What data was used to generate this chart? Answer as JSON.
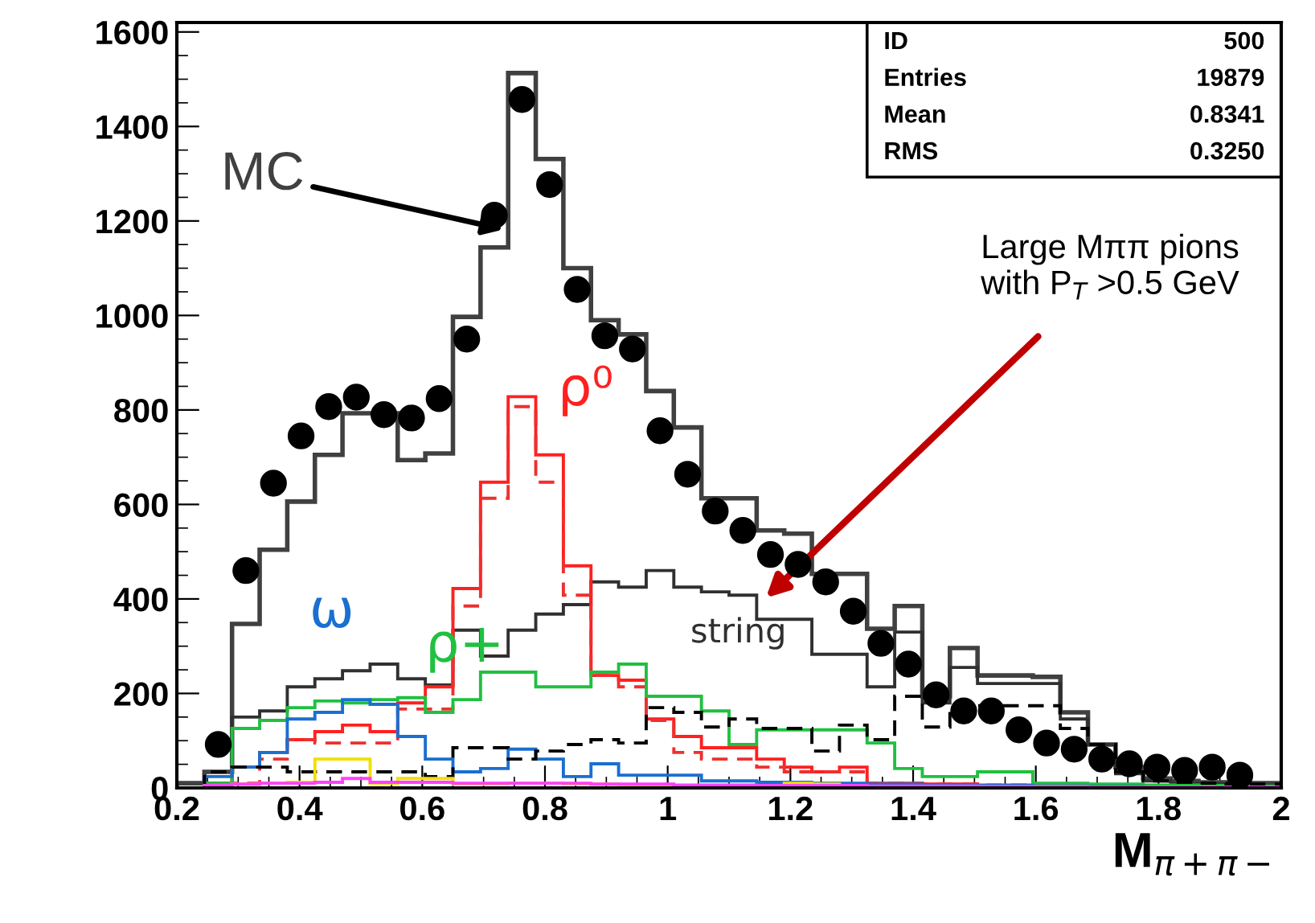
{
  "chart_data": {
    "type": "histogram",
    "xlabel": "M$_{π+π−}$",
    "bins": [
      0.2,
      0.245,
      0.29,
      0.335,
      0.38,
      0.425,
      0.47,
      0.515,
      0.56,
      0.605,
      0.65,
      0.695,
      0.74,
      0.785,
      0.83,
      0.875,
      0.92,
      0.965,
      1.01,
      1.055,
      1.1,
      1.145,
      1.19,
      1.235,
      1.28,
      1.325,
      1.37,
      1.415,
      1.46,
      1.505,
      1.55,
      1.595,
      1.64,
      1.685,
      1.73,
      1.775,
      1.82,
      1.865,
      1.91,
      1.955,
      2.0
    ],
    "series": [
      {
        "name": "MC",
        "color": "#404040",
        "values": [
          10,
          34,
          347,
          504,
          606,
          705,
          793,
          793,
          694,
          708,
          997,
          1144,
          1513,
          1331,
          1100,
          990,
          960,
          840,
          763,
          613,
          613,
          545,
          538,
          453,
          453,
          337,
          385,
          194,
          296,
          238,
          238,
          235,
          160,
          92,
          44,
          20,
          15,
          12,
          10,
          10
        ]
      },
      {
        "name": "string",
        "color": "#303030",
        "values": [
          0,
          10,
          150,
          163,
          214,
          231,
          248,
          262,
          231,
          218,
          334,
          279,
          334,
          368,
          388,
          436,
          425,
          460,
          425,
          415,
          408,
          357,
          357,
          283,
          283,
          214,
          330,
          180,
          255,
          221,
          221,
          221,
          146,
          92,
          30,
          15,
          10,
          8,
          6,
          5
        ]
      },
      {
        "name": "ρ⁰",
        "color": "#ff2020",
        "values": [
          0,
          10,
          44,
          75,
          102,
          119,
          133,
          119,
          180,
          214,
          422,
          647,
          828,
          705,
          470,
          238,
          228,
          146,
          109,
          85,
          85,
          61,
          44,
          34,
          44,
          10,
          10,
          8,
          8,
          6,
          6,
          5,
          5,
          4,
          4,
          3,
          3,
          2,
          2,
          2
        ]
      },
      {
        "color": "#ee3030",
        "line_style": "dashed",
        "values": [
          0,
          5,
          10,
          61,
          102,
          95,
          95,
          95,
          167,
          167,
          385,
          613,
          807,
          647,
          408,
          238,
          214,
          143,
          75,
          61,
          61,
          44,
          34,
          34,
          34,
          10,
          10,
          8,
          8,
          6,
          6,
          5,
          5,
          4,
          4,
          3,
          3,
          2,
          2,
          2
        ]
      },
      {
        "name": "ρ+",
        "color": "#20c040",
        "values": [
          0,
          10,
          126,
          143,
          170,
          184,
          180,
          187,
          191,
          160,
          187,
          245,
          245,
          214,
          214,
          245,
          262,
          194,
          194,
          163,
          92,
          123,
          123,
          123,
          123,
          95,
          41,
          24,
          24,
          34,
          34,
          10,
          10,
          8,
          8,
          6,
          6,
          5,
          5,
          4
        ]
      },
      {
        "name": "ω",
        "color": "#1a6fd0",
        "values": [
          0,
          24,
          44,
          75,
          146,
          160,
          187,
          177,
          109,
          61,
          34,
          41,
          82,
          61,
          24,
          51,
          27,
          27,
          27,
          15,
          15,
          12,
          12,
          10,
          10,
          8,
          8,
          6,
          6,
          5,
          5,
          4,
          4,
          3,
          3,
          2,
          2,
          2,
          1,
          1
        ]
      },
      {
        "color": "#000000",
        "line_style": "dashed",
        "values": [
          0,
          34,
          44,
          44,
          34,
          34,
          34,
          34,
          34,
          24,
          85,
          85,
          61,
          78,
          92,
          102,
          95,
          170,
          160,
          129,
          146,
          126,
          126,
          78,
          133,
          102,
          194,
          129,
          174,
          174,
          174,
          174,
          126,
          92,
          34,
          15,
          12,
          10,
          8,
          8
        ]
      },
      {
        "color": "#f0e000",
        "values": [
          0,
          5,
          8,
          10,
          12,
          61,
          61,
          10,
          20,
          20,
          8,
          8,
          10,
          10,
          8,
          8,
          6,
          6,
          5,
          5,
          4,
          4,
          10,
          8,
          4,
          3,
          3,
          3,
          2,
          2,
          2,
          2,
          2,
          1,
          1,
          1,
          1,
          1,
          1,
          1
        ]
      },
      {
        "color": "#ff40ff",
        "values": [
          0,
          5,
          8,
          10,
          10,
          12,
          20,
          12,
          12,
          12,
          10,
          10,
          10,
          10,
          10,
          8,
          8,
          8,
          6,
          6,
          6,
          5,
          5,
          5,
          5,
          4,
          4,
          4,
          4,
          3,
          3,
          3,
          3,
          2,
          2,
          2,
          2,
          2,
          2,
          2
        ]
      },
      {
        "type": "scatter",
        "color": "#000000",
        "marker": "circle",
        "x": [
          0.2675,
          0.3125,
          0.3575,
          0.4025,
          0.4475,
          0.4925,
          0.5375,
          0.5825,
          0.6275,
          0.6725,
          0.7175,
          0.7625,
          0.8075,
          0.8525,
          0.8975,
          0.9425,
          0.9875,
          1.0325,
          1.0775,
          1.1225,
          1.1675,
          1.2125,
          1.2575,
          1.3025,
          1.3475,
          1.3925,
          1.4375,
          1.4825,
          1.5275,
          1.5725,
          1.6175,
          1.6625,
          1.7075,
          1.7525,
          1.7975,
          1.8425,
          1.8875,
          1.9325
        ],
        "values": [
          92,
          460,
          645,
          745,
          807,
          827,
          790,
          783,
          824,
          950,
          1212,
          1457,
          1277,
          1055,
          957,
          929,
          756,
          664,
          586,
          545,
          494,
          473,
          436,
          374,
          306,
          262,
          197,
          163,
          163,
          123,
          95,
          82,
          61,
          51,
          44,
          37,
          44,
          27
        ]
      }
    ],
    "annotations": [
      "ID",
      "500",
      "Entries",
      "19879",
      "Mean",
      "0.8341",
      "RMS",
      "0.3250",
      {
        "text": "Large Mππ pions\nwith P$_{T}$ >0.5 GeV",
        "x": 1.16,
        "y": 402
      }
    ],
    "xlim": [
      0.2,
      2.0
    ],
    "ylim": [
      0,
      1620
    ],
    "xticks": [
      0.2,
      0.4,
      0.6,
      0.8,
      1,
      1.2,
      1.4,
      1.6,
      1.8,
      2
    ],
    "yticks": [
      0,
      200,
      400,
      600,
      800,
      1000,
      1200,
      1400,
      1600
    ],
    "grid": false
  }
}
